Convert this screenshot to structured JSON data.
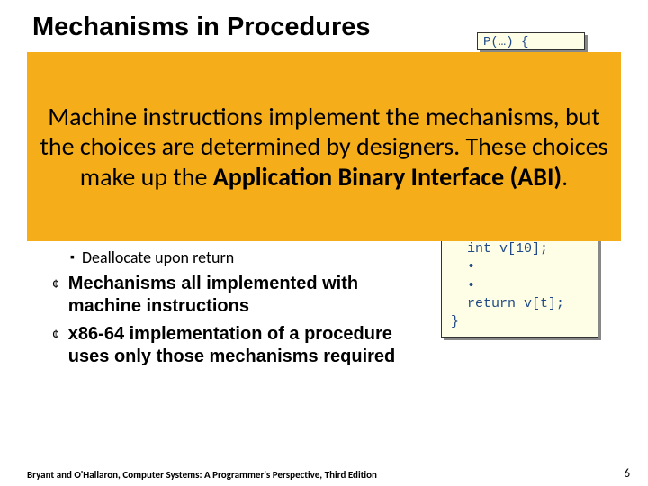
{
  "title": "Mechanisms in Procedures",
  "code_top": "P(…) {",
  "overlay": {
    "line1": "Machine instructions implement the mechanisms, but the choices are determined by designers.  These choices make up the ",
    "bold": "Application Binary Interface (ABI)",
    "tail": "."
  },
  "bullets": {
    "sub1": "Deallocate upon return",
    "main1": "Mechanisms all implemented with machine instructions",
    "main2": "x86-64 implementation of a procedure uses only those mechanisms required"
  },
  "code_bottom": "  int v[10];\n  •\n  •\n  return v[t];\n}",
  "footer": "Bryant and O'Hallaron, Computer Systems: A Programmer's Perspective, Third Edition",
  "page": "6",
  "colors": {
    "overlay_bg": "#f5ae1a",
    "code_bg": "#fefde5",
    "code_text": "#204a87"
  }
}
